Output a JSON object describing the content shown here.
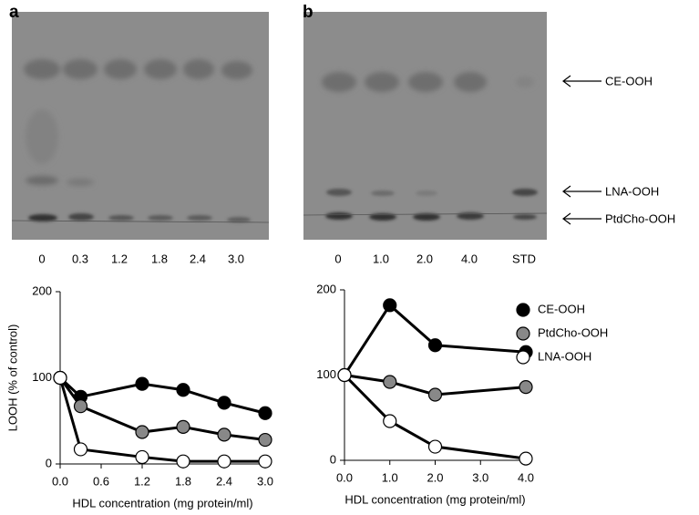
{
  "gels": [
    {
      "panel_label": "a",
      "lanes": [
        "0",
        "0.3",
        "1.2",
        "1.8",
        "2.4",
        "3.0"
      ]
    },
    {
      "panel_label": "b",
      "lanes": [
        "0",
        "1.0",
        "2.0",
        "4.0",
        "STD"
      ],
      "band_labels": [
        "CE-OOH",
        "LNA-OOH",
        "PtdCho-OOH"
      ]
    }
  ],
  "chart_data": [
    {
      "type": "line",
      "xlabel": "HDL concentration (mg protein/ml)",
      "ylabel": "LOOH (% of control)",
      "x": [
        0,
        0.3,
        1.2,
        1.8,
        2.4,
        3.0
      ],
      "xlim": [
        0,
        3.0
      ],
      "xticks": [
        {
          "value": 0,
          "label": "0.0"
        },
        0.6,
        1.2,
        1.8,
        2.4,
        {
          "value": 3,
          "label": "3.0"
        }
      ],
      "ylim": [
        0,
        200
      ],
      "yticks": [
        0,
        100,
        200
      ],
      "series": [
        {
          "color": "#000000",
          "values": [
            100,
            78,
            93,
            86,
            71,
            59
          ]
        },
        {
          "color": "#888888",
          "values": [
            100,
            67,
            37,
            43,
            34,
            28
          ]
        },
        {
          "color": "#ffffff",
          "values": [
            100,
            17,
            8,
            3,
            3,
            3
          ]
        }
      ]
    },
    {
      "type": "line",
      "xlabel": "HDL concentration (mg protein/ml)",
      "x": [
        0,
        1,
        2,
        4
      ],
      "xlim": [
        0,
        4
      ],
      "xticks": [
        {
          "value": 0,
          "label": "0.0"
        },
        {
          "value": 1,
          "label": "1.0"
        },
        {
          "value": 2,
          "label": "2.0"
        },
        {
          "value": 3,
          "label": "3.0"
        },
        {
          "value": 4,
          "label": "4.0"
        }
      ],
      "ylim": [
        0,
        200
      ],
      "yticks": [
        0,
        100,
        200
      ],
      "legend": "right",
      "series": [
        {
          "name": "CE-OOH",
          "color": "#000000",
          "values": [
            100,
            182,
            135,
            127
          ]
        },
        {
          "name": "PtdCho-OOH",
          "color": "#888888",
          "values": [
            100,
            92,
            77,
            86
          ]
        },
        {
          "name": "LNA-OOH",
          "color": "#ffffff",
          "values": [
            100,
            46,
            16,
            2
          ]
        }
      ]
    }
  ]
}
